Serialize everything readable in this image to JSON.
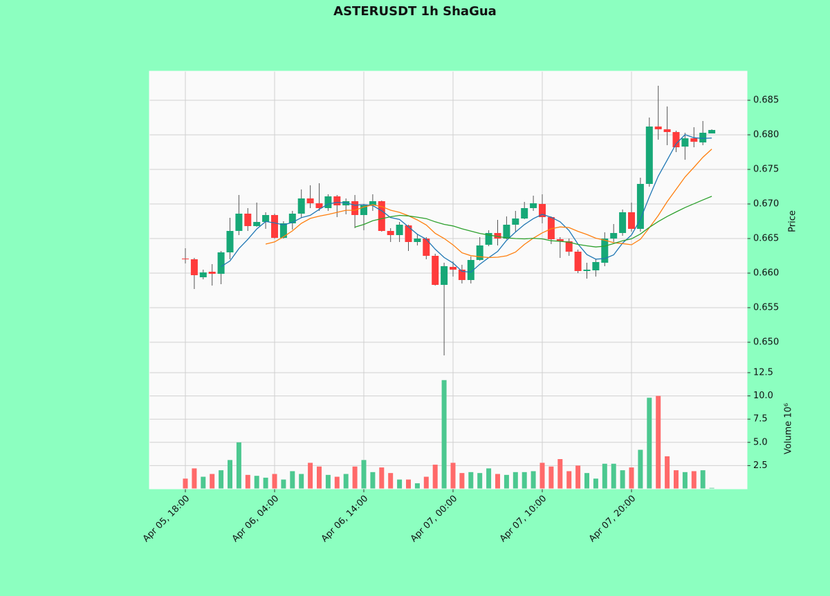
{
  "chart_data": {
    "type": "candlestick",
    "title": "ASTERUSDT 1h ShaGua",
    "y_label": "Price",
    "volume_label": "Volume  10⁶",
    "categories": [
      "Apr 05, 18:00",
      null,
      null,
      null,
      null,
      null,
      null,
      null,
      null,
      null,
      "Apr 06, 04:00",
      null,
      null,
      null,
      null,
      null,
      null,
      null,
      null,
      null,
      "Apr 06, 14:00",
      null,
      null,
      null,
      null,
      null,
      null,
      null,
      null,
      null,
      "Apr 07, 00:00",
      null,
      null,
      null,
      null,
      null,
      null,
      null,
      null,
      null,
      "Apr 07, 10:00",
      null,
      null,
      null,
      null,
      null,
      null,
      null,
      null,
      null,
      "Apr 07, 20:00",
      null,
      null,
      null,
      null,
      null,
      null,
      null,
      null,
      null
    ],
    "open": [
      0.6621,
      0.662,
      0.6594,
      0.6602,
      0.6599,
      0.663,
      0.6661,
      0.6686,
      0.6668,
      0.6674,
      0.6684,
      0.6651,
      0.6672,
      0.6686,
      0.6708,
      0.6701,
      0.6694,
      0.6711,
      0.6698,
      0.6704,
      0.6684,
      0.6698,
      0.6704,
      0.6661,
      0.6655,
      0.6669,
      0.6645,
      0.665,
      0.6625,
      0.6583,
      0.6609,
      0.6605,
      0.659,
      0.6619,
      0.6641,
      0.6658,
      0.665,
      0.667,
      0.6679,
      0.6694,
      0.67,
      0.6681,
      0.6649,
      0.6646,
      0.6631,
      0.6603,
      0.6604,
      0.6615,
      0.665,
      0.6658,
      0.6688,
      0.6664,
      0.6729,
      0.6812,
      0.6808,
      0.6804,
      0.6783,
      0.6795,
      0.6789,
      0.6802
    ],
    "high": [
      0.6636,
      0.6622,
      0.6605,
      0.6613,
      0.6632,
      0.668,
      0.6713,
      0.6694,
      0.6702,
      0.6688,
      0.6686,
      0.6675,
      0.669,
      0.6721,
      0.6727,
      0.673,
      0.6714,
      0.6713,
      0.6708,
      0.6713,
      0.67,
      0.6714,
      0.6705,
      0.6665,
      0.6674,
      0.667,
      0.6656,
      0.6652,
      0.6628,
      0.6615,
      0.6617,
      0.6612,
      0.6624,
      0.6652,
      0.6662,
      0.6677,
      0.6682,
      0.669,
      0.6703,
      0.6712,
      0.6714,
      0.6682,
      0.6652,
      0.665,
      0.6634,
      0.6615,
      0.662,
      0.6659,
      0.6671,
      0.6692,
      0.6702,
      0.6738,
      0.6825,
      0.6871,
      0.6841,
      0.6806,
      0.6803,
      0.6811,
      0.682,
      0.6808
    ],
    "low": [
      0.6614,
      0.6577,
      0.6591,
      0.6582,
      0.6584,
      0.662,
      0.6655,
      0.6661,
      0.6667,
      0.6664,
      0.665,
      0.665,
      0.6663,
      0.668,
      0.6694,
      0.669,
      0.669,
      0.6681,
      0.6685,
      0.6665,
      0.6662,
      0.669,
      0.666,
      0.6645,
      0.6645,
      0.6632,
      0.664,
      0.662,
      0.6582,
      0.6481,
      0.6595,
      0.6585,
      0.6585,
      0.6618,
      0.6639,
      0.664,
      0.6649,
      0.666,
      0.6678,
      0.669,
      0.6672,
      0.6642,
      0.6622,
      0.6625,
      0.66,
      0.6592,
      0.6595,
      0.661,
      0.6645,
      0.6654,
      0.666,
      0.666,
      0.6725,
      0.6793,
      0.6785,
      0.6775,
      0.6764,
      0.6782,
      0.6785,
      0.6802
    ],
    "close": [
      0.662,
      0.6597,
      0.6601,
      0.6599,
      0.663,
      0.6661,
      0.6686,
      0.6668,
      0.6674,
      0.6684,
      0.6651,
      0.6672,
      0.6686,
      0.6708,
      0.6701,
      0.6694,
      0.6711,
      0.6698,
      0.6704,
      0.6684,
      0.6698,
      0.6704,
      0.6661,
      0.6655,
      0.667,
      0.6645,
      0.665,
      0.6625,
      0.6583,
      0.661,
      0.6605,
      0.659,
      0.6619,
      0.664,
      0.6658,
      0.665,
      0.667,
      0.6679,
      0.6694,
      0.6701,
      0.6681,
      0.6649,
      0.6646,
      0.6631,
      0.6603,
      0.6605,
      0.6616,
      0.665,
      0.6658,
      0.6688,
      0.6664,
      0.6729,
      0.6812,
      0.6808,
      0.6804,
      0.6782,
      0.6795,
      0.679,
      0.6803,
      0.6807
    ],
    "volume": [
      1.1,
      2.2,
      1.3,
      1.6,
      2.0,
      3.1,
      5.0,
      1.5,
      1.4,
      1.2,
      1.6,
      1.0,
      1.9,
      1.6,
      2.8,
      2.4,
      1.5,
      1.3,
      1.6,
      2.4,
      3.1,
      1.8,
      2.3,
      1.7,
      1.0,
      1.0,
      0.6,
      1.3,
      2.6,
      11.7,
      2.8,
      1.7,
      1.8,
      1.7,
      2.2,
      1.6,
      1.5,
      1.8,
      1.8,
      1.9,
      2.8,
      2.4,
      3.2,
      1.9,
      2.5,
      1.7,
      1.1,
      2.7,
      2.7,
      2.0,
      2.3,
      4.2,
      9.8,
      10.0,
      3.5,
      2.0,
      1.8,
      1.9,
      2.0,
      0.1
    ],
    "up_color": "#17a877",
    "down_color": "#ff3b3b",
    "volume_up_color": "#4cc890",
    "volume_down_color": "#ff6a6a",
    "ma_lines": [
      {
        "color": "#1f77b4",
        "values": [
          null,
          null,
          null,
          null,
          0.66094,
          0.66176,
          0.66354,
          0.66488,
          0.66638,
          0.66746,
          0.66726,
          0.66698,
          0.66734,
          0.66802,
          0.66836,
          0.66922,
          0.67,
          0.67024,
          0.67016,
          0.66982,
          0.6699,
          0.66976,
          0.66902,
          0.66804,
          0.66776,
          0.6667,
          0.66562,
          0.6649,
          0.66346,
          0.66226,
          0.66146,
          0.66026,
          0.66014,
          0.66128,
          0.66224,
          0.66314,
          0.66474,
          0.66594,
          0.66702,
          0.66788,
          0.6685,
          0.66808,
          0.66742,
          0.66616,
          0.6642,
          0.66268,
          0.66202,
          0.6621,
          0.66264,
          0.66434,
          0.66552,
          0.66778,
          0.67102,
          0.67402,
          0.67634,
          0.6787,
          0.68002,
          0.67958,
          0.67948,
          0.67954
        ]
      },
      {
        "color": "#ff7f0e",
        "values": [
          null,
          null,
          null,
          null,
          null,
          null,
          null,
          null,
          null,
          0.6642,
          0.66451,
          0.66526,
          0.66611,
          0.6672,
          0.66791,
          0.66824,
          0.66849,
          0.66879,
          0.66909,
          0.66909,
          0.66956,
          0.66988,
          0.66963,
          0.6691,
          0.66879,
          0.6683,
          0.66769,
          0.66696,
          0.66575,
          0.66501,
          0.66408,
          0.66294,
          0.66252,
          0.66237,
          0.66225,
          0.6623,
          0.6625,
          0.66304,
          0.66415,
          0.66506,
          0.66582,
          0.66641,
          0.66668,
          0.66659,
          0.66604,
          0.66559,
          0.66505,
          0.66476,
          0.6644,
          0.66427,
          0.6641,
          0.6649,
          0.66656,
          0.66833,
          0.67034,
          0.67211,
          0.6739,
          0.6753,
          0.67675,
          0.67794
        ]
      },
      {
        "color": "#2ca02c",
        "values": [
          null,
          null,
          null,
          null,
          null,
          null,
          null,
          null,
          null,
          null,
          null,
          null,
          null,
          null,
          null,
          null,
          null,
          null,
          null,
          0.66665,
          0.66704,
          0.66757,
          0.66787,
          0.66815,
          0.66835,
          0.66827,
          0.66809,
          0.66788,
          0.66742,
          0.66705,
          0.66682,
          0.66641,
          0.66608,
          0.66574,
          0.66552,
          0.6653,
          0.6651,
          0.665,
          0.66495,
          0.66504,
          0.66495,
          0.66468,
          0.6646,
          0.66448,
          0.66415,
          0.66395,
          0.66378,
          0.6639,
          0.66428,
          0.66467,
          0.66496,
          0.66566,
          0.66662,
          0.66746,
          0.66819,
          0.66885,
          0.66948,
          0.67003,
          0.67058,
          0.67111
        ]
      }
    ],
    "ylim": [
      0.6456,
      0.6892
    ],
    "yticks": [
      {
        "value": 0.65,
        "label": "0.650"
      },
      0.655,
      {
        "value": 0.66,
        "label": "0.660"
      },
      0.665,
      {
        "value": 0.67,
        "label": "0.670"
      },
      0.675,
      {
        "value": 0.68,
        "label": "0.680"
      },
      0.685
    ],
    "volume_ylim": [
      0,
      12.5
    ],
    "volume_yticks": [
      2.5,
      {
        "value": 5,
        "label": "5.0"
      },
      7.5,
      {
        "value": 10,
        "label": "10.0"
      },
      12.5
    ],
    "grid": true
  }
}
